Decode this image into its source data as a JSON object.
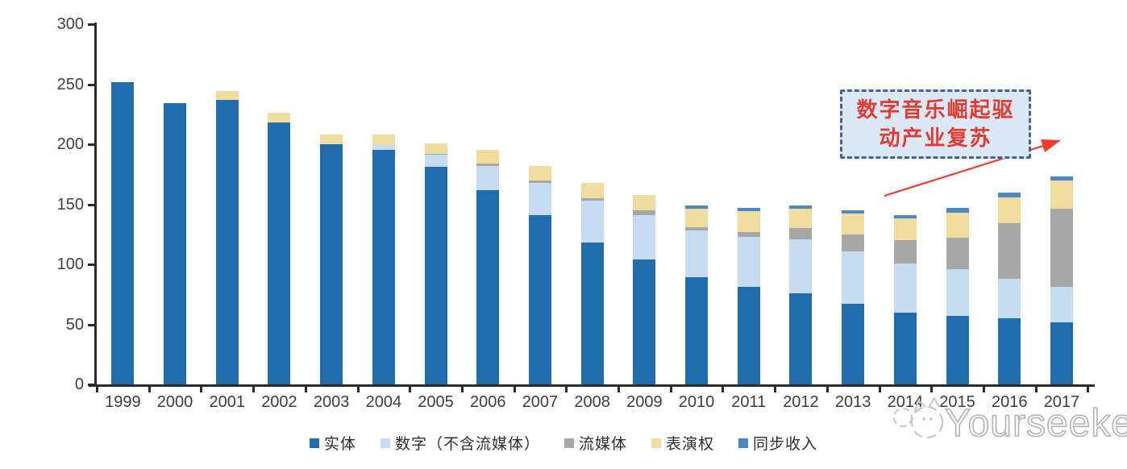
{
  "chart_data": {
    "type": "bar",
    "stacked": true,
    "title": "",
    "xlabel": "",
    "ylabel": "",
    "ylim": [
      0,
      300
    ],
    "yticks": [
      0,
      50,
      100,
      150,
      200,
      250,
      300
    ],
    "grid": false,
    "legend_position": "bottom",
    "categories": [
      "1999",
      "2000",
      "2001",
      "2002",
      "2003",
      "2004",
      "2005",
      "2006",
      "2007",
      "2008",
      "2009",
      "2010",
      "2011",
      "2012",
      "2013",
      "2014",
      "2015",
      "2016",
      "2017"
    ],
    "series": [
      {
        "name": "实体",
        "color": "#1f6dad",
        "values": [
          252,
          234,
          237,
          218,
          200,
          195,
          181,
          162,
          141,
          118,
          104,
          89,
          81,
          76,
          67,
          60,
          57,
          55,
          52
        ]
      },
      {
        "name": "数字（不含流媒体）",
        "color": "#c6dcf1",
        "values": [
          0,
          0,
          0,
          0,
          0,
          4,
          10,
          20,
          27,
          35,
          37,
          39,
          42,
          45,
          44,
          41,
          39,
          33,
          29
        ]
      },
      {
        "name": "流媒体",
        "color": "#a7a7a7",
        "values": [
          0,
          0,
          0,
          0,
          0,
          0,
          1,
          2,
          2,
          2,
          4,
          3,
          4,
          9,
          14,
          19,
          26,
          46,
          65
        ]
      },
      {
        "name": "表演权",
        "color": "#f0dd9d",
        "values": [
          0,
          0,
          7,
          8,
          8,
          9,
          9,
          11,
          12,
          13,
          13,
          15,
          17,
          16,
          17,
          18,
          21,
          22,
          24
        ]
      },
      {
        "name": "同步收入",
        "color": "#4c89c4",
        "values": [
          0,
          0,
          0,
          0,
          0,
          0,
          0,
          0,
          0,
          0,
          0,
          3,
          3,
          3,
          3,
          3,
          4,
          4,
          3
        ]
      }
    ]
  },
  "annotation": {
    "line1": "数字音乐崛起驱",
    "line2": "动产业复苏",
    "text_color": "#e23c32",
    "box_fill": "#dbe9f7",
    "box_border": "#44649f",
    "arrow_color": "#ee3b2f"
  },
  "watermark": {
    "text": "Yourseeker"
  }
}
